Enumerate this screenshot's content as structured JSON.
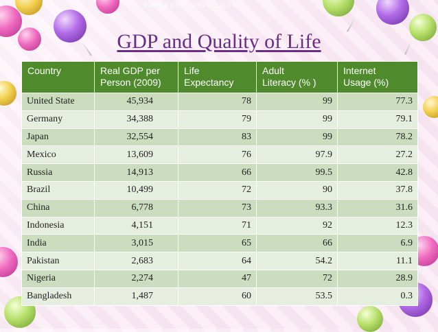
{
  "watermark": "PRESENTATIONPRO.COM",
  "title": "GDP and Quality of Life",
  "table": {
    "headers": {
      "country": "Country",
      "gdp_line1": "Real GDP per",
      "gdp_line2": "Person (2009)",
      "life_line1": "Life",
      "life_line2": "Expectancy",
      "literacy_line1": "Adult",
      "literacy_line2": "Literacy (% )",
      "internet_line1": "Internet",
      "internet_line2": "Usage (%)"
    },
    "rows": [
      {
        "country": "United State",
        "gdp": "45,934",
        "life": "78",
        "literacy": "99",
        "internet": "77.3"
      },
      {
        "country": "Germany",
        "gdp": "34,388",
        "life": "79",
        "literacy": "99",
        "internet": "79.1"
      },
      {
        "country": "Japan",
        "gdp": "32,554",
        "life": "83",
        "literacy": "99",
        "internet": "78.2"
      },
      {
        "country": "Mexico",
        "gdp": "13,609",
        "life": "76",
        "literacy": "97.9",
        "internet": "27.2"
      },
      {
        "country": "Russia",
        "gdp": "14,913",
        "life": "66",
        "literacy": "99.5",
        "internet": "42.8"
      },
      {
        "country": "Brazil",
        "gdp": "10,499",
        "life": "72",
        "literacy": "90",
        "internet": "37.8"
      },
      {
        "country": "China",
        "gdp": "6,778",
        "life": "73",
        "literacy": "93.3",
        "internet": "31.6"
      },
      {
        "country": "Indonesia",
        "gdp": "4,151",
        "life": "71",
        "literacy": "92",
        "internet": "12.3"
      },
      {
        "country": "India",
        "gdp": "3,015",
        "life": "65",
        "literacy": "66",
        "internet": "6.9"
      },
      {
        "country": "Pakistan",
        "gdp": "2,683",
        "life": "64",
        "literacy": "54.2",
        "internet": "11.1"
      },
      {
        "country": "Nigeria",
        "gdp": "2,274",
        "life": "47",
        "literacy": "72",
        "internet": "28.9"
      },
      {
        "country": "Bangladesh",
        "gdp": "1,487",
        "life": "60",
        "literacy": "53.5",
        "internet": "0.3"
      }
    ]
  },
  "colors": {
    "header_bg": "#4f8a2c",
    "row_odd": "#cbdcbf",
    "row_even": "#e6efdf",
    "title": "#6a2c86"
  }
}
